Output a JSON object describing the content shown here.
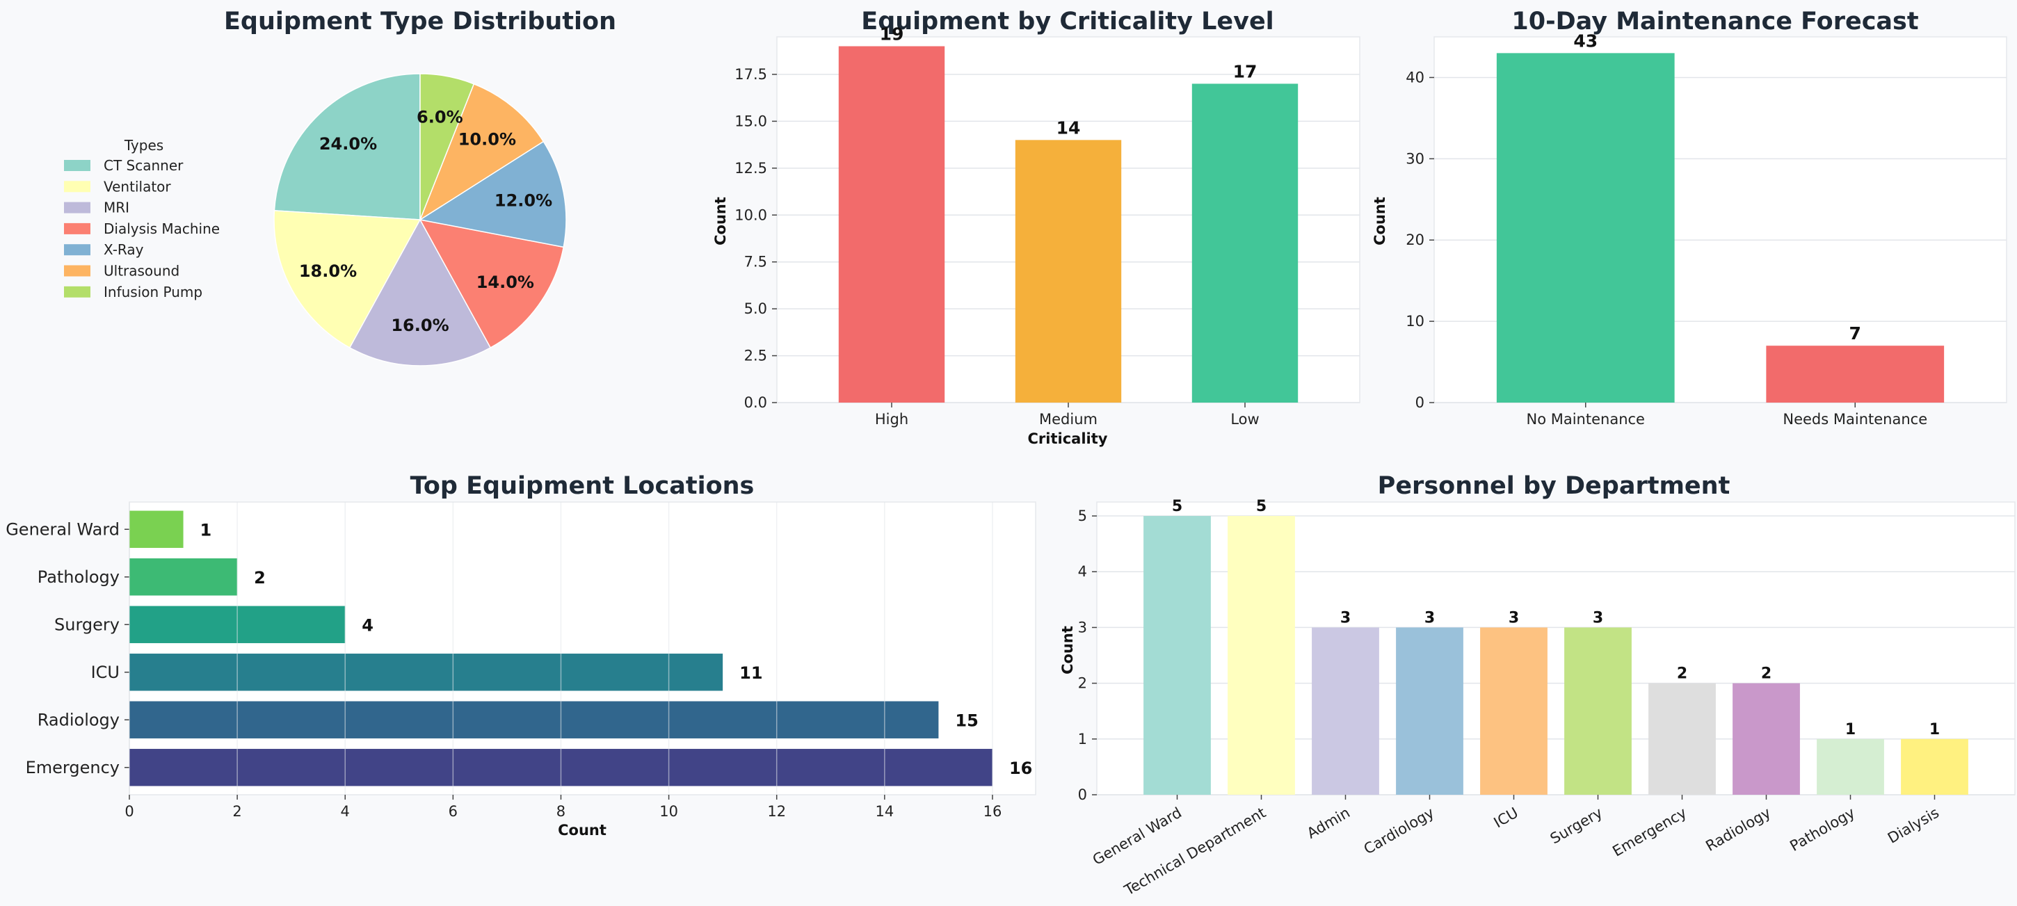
{
  "chart_data": [
    {
      "id": "pie",
      "type": "pie",
      "title": "Equipment Type Distribution",
      "legend_title": "Types",
      "legend_position": "left",
      "slices": [
        {
          "label": "CT Scanner",
          "value": 24.0,
          "pct_label": "24.0%",
          "color": "#8dd3c7"
        },
        {
          "label": "Ventilator",
          "value": 18.0,
          "pct_label": "18.0%",
          "color": "#ffffb3"
        },
        {
          "label": "MRI",
          "value": 16.0,
          "pct_label": "16.0%",
          "color": "#bebada"
        },
        {
          "label": "Dialysis Machine",
          "value": 14.0,
          "pct_label": "14.0%",
          "color": "#fb8072"
        },
        {
          "label": "X-Ray",
          "value": 12.0,
          "pct_label": "12.0%",
          "color": "#80b1d3"
        },
        {
          "label": "Ultrasound",
          "value": 10.0,
          "pct_label": "10.0%",
          "color": "#fdb462"
        },
        {
          "label": "Infusion Pump",
          "value": 6.0,
          "pct_label": "6.0%",
          "color": "#b3de69"
        }
      ]
    },
    {
      "id": "criticality",
      "type": "bar",
      "title": "Equipment by Criticality Level",
      "xlabel": "Criticality",
      "ylabel": "Count",
      "categories": [
        "High",
        "Medium",
        "Low"
      ],
      "values": [
        19,
        14,
        17
      ],
      "colors": [
        "#f26b6b",
        "#f5b03b",
        "#42c698"
      ],
      "ylim": [
        0,
        19.5
      ],
      "yticks": [
        0.0,
        2.5,
        5.0,
        7.5,
        10.0,
        12.5,
        15.0,
        17.5
      ],
      "ytick_labels": [
        "0.0",
        "2.5",
        "5.0",
        "7.5",
        "10.0",
        "12.5",
        "15.0",
        "17.5"
      ],
      "grid": true
    },
    {
      "id": "forecast",
      "type": "bar",
      "title": "10-Day Maintenance Forecast",
      "xlabel": "",
      "ylabel": "Count",
      "categories": [
        "No Maintenance",
        "Needs Maintenance"
      ],
      "values": [
        43,
        7
      ],
      "colors": [
        "#42c698",
        "#f26b6b"
      ],
      "ylim": [
        0,
        45
      ],
      "yticks": [
        0,
        10,
        20,
        30,
        40
      ],
      "ytick_labels": [
        "0",
        "10",
        "20",
        "30",
        "40"
      ],
      "grid": true
    },
    {
      "id": "locations",
      "type": "bar",
      "orientation": "horizontal",
      "title": "Top Equipment Locations",
      "xlabel": "Count",
      "ylabel": "",
      "categories": [
        "General Ward",
        "Pathology",
        "Surgery",
        "ICU",
        "Radiology",
        "Emergency"
      ],
      "values": [
        1,
        2,
        4,
        11,
        15,
        16
      ],
      "colors": [
        "#7ad151",
        "#3dba74",
        "#22a187",
        "#277f8e",
        "#31668d",
        "#414487"
      ],
      "xlim": [
        0,
        16.8
      ],
      "xticks": [
        0,
        2,
        4,
        6,
        8,
        10,
        12,
        14,
        16
      ],
      "xtick_labels": [
        "0",
        "2",
        "4",
        "6",
        "8",
        "10",
        "12",
        "14",
        "16"
      ],
      "grid": true
    },
    {
      "id": "personnel",
      "type": "bar",
      "title": "Personnel by Department",
      "xlabel": "",
      "ylabel": "Count",
      "categories": [
        "General Ward",
        "Technical Department",
        "Admin",
        "Cardiology",
        "ICU",
        "Surgery",
        "Emergency",
        "Radiology",
        "Pathology",
        "Dialysis"
      ],
      "values": [
        5,
        5,
        3,
        3,
        3,
        3,
        2,
        2,
        1,
        1
      ],
      "colors": [
        "#a3dcd4",
        "#ffffbf",
        "#cbc8e3",
        "#9ac1da",
        "#fdc281",
        "#c2e385",
        "#dedede",
        "#c998ca",
        "#d5eed2",
        "#fff180"
      ],
      "ylim": [
        0,
        5.25
      ],
      "yticks": [
        0,
        1,
        2,
        3,
        4,
        5
      ],
      "ytick_labels": [
        "0",
        "1",
        "2",
        "3",
        "4",
        "5"
      ],
      "grid": true
    }
  ]
}
